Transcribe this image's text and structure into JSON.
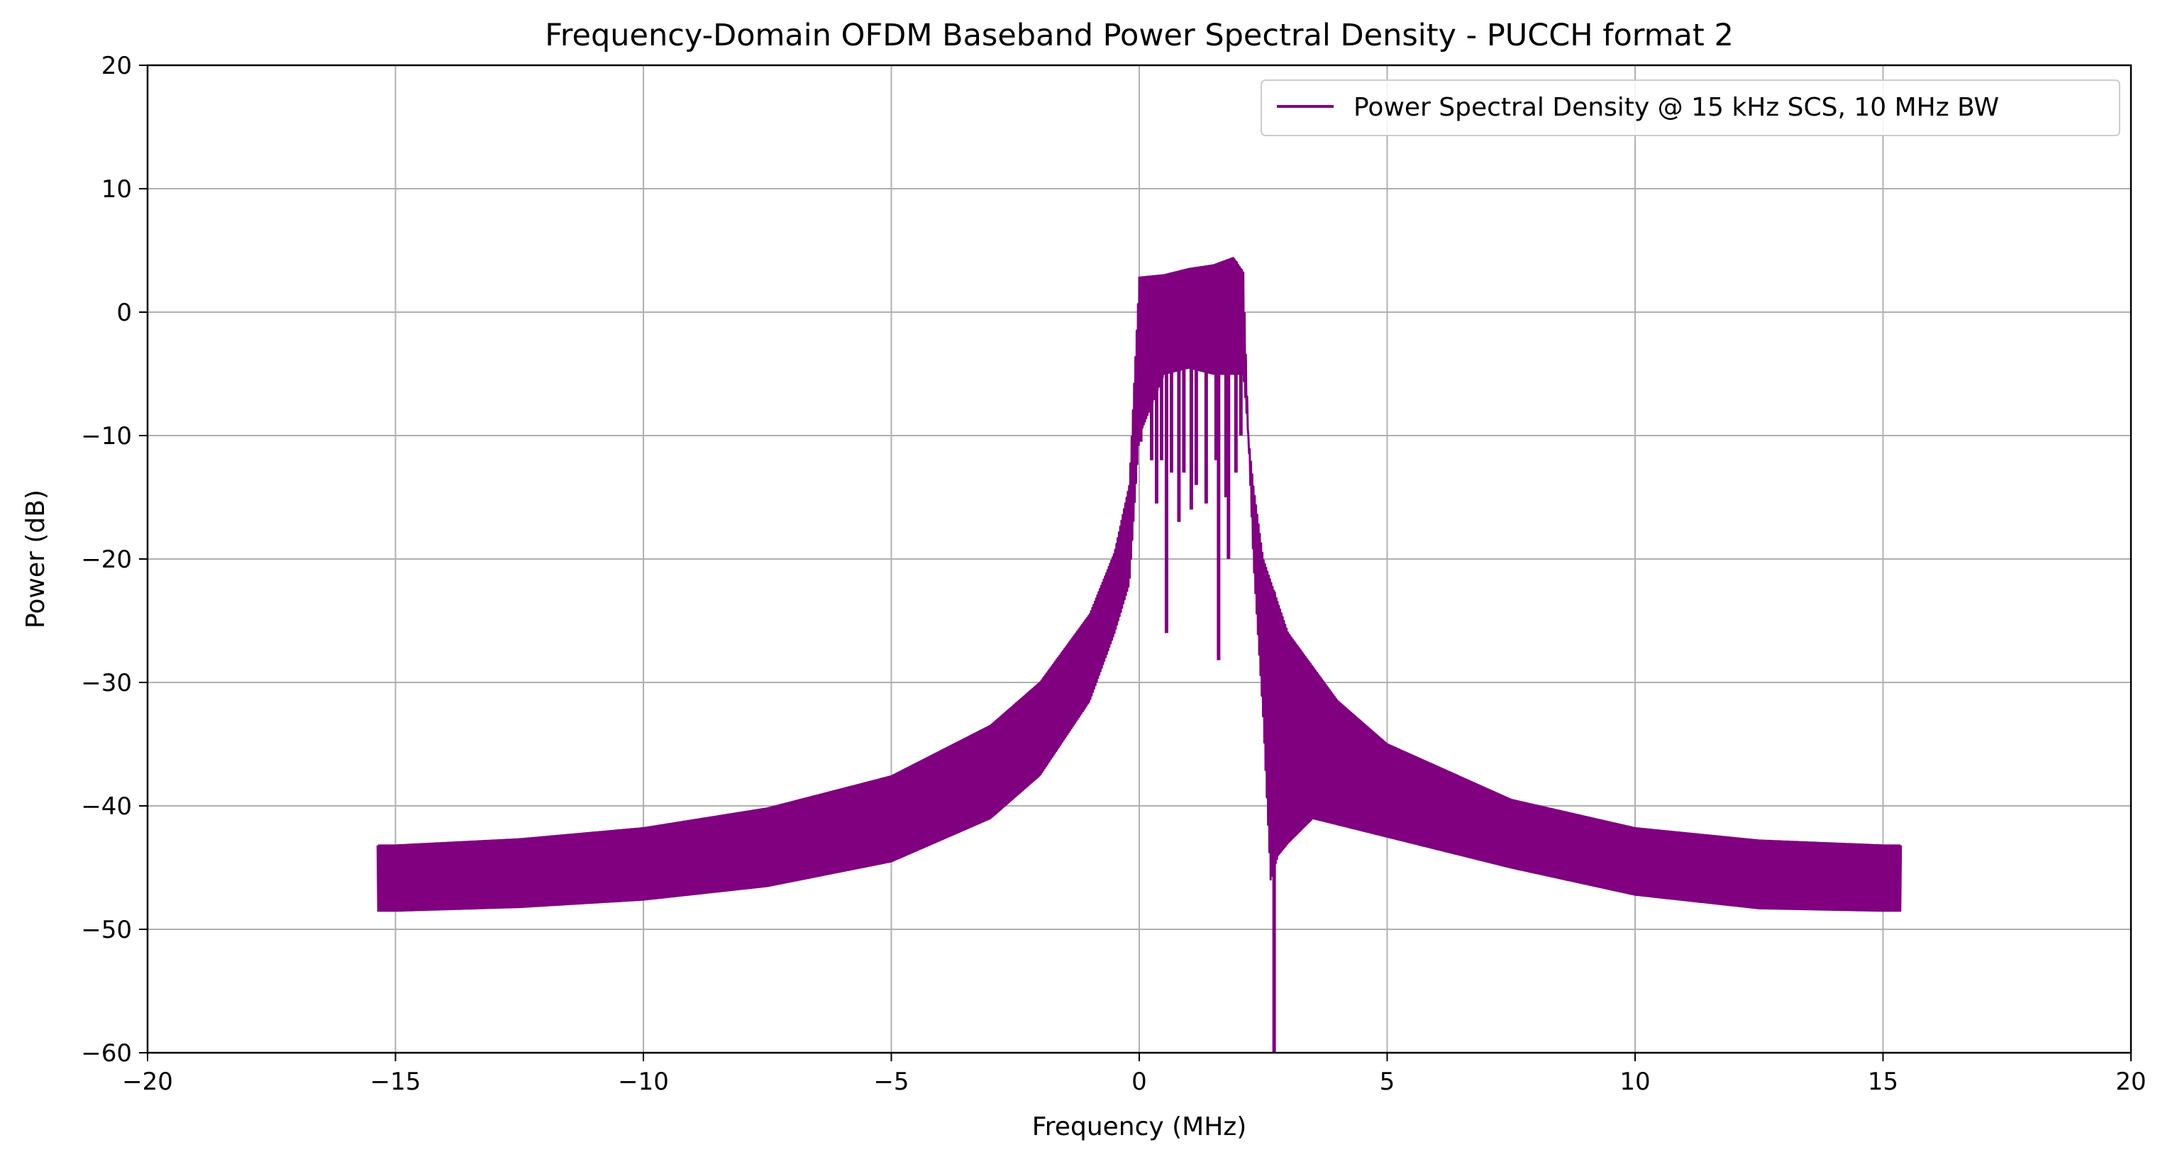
{
  "chart_data": {
    "type": "line",
    "title": "Frequency-Domain OFDM Baseband Power Spectral Density - PUCCH format 2",
    "xlabel": "Frequency (MHz)",
    "ylabel": "Power (dB)",
    "xlim": [
      -20,
      20
    ],
    "ylim": [
      -60,
      20
    ],
    "xticks": [
      -20,
      -15,
      -10,
      -5,
      0,
      5,
      10,
      15,
      20
    ],
    "xtick_labels": [
      "−20",
      "−15",
      "−10",
      "−5",
      "0",
      "5",
      "10",
      "15",
      "20"
    ],
    "yticks": [
      -60,
      -50,
      -40,
      -30,
      -20,
      -10,
      0,
      10,
      20
    ],
    "ytick_labels": [
      "−60",
      "−50",
      "−40",
      "−30",
      "−20",
      "−10",
      "0",
      "10",
      "20"
    ],
    "grid": true,
    "legend_position": "upper right",
    "series": [
      {
        "name": "Power Spectral Density @ 15 kHz SCS, 10 MHz BW",
        "color": "#800080",
        "x_range": [
          -15.36,
          15.36
        ],
        "band": [
          2.08,
          4.4
        ],
        "envelope_upper": [
          [
            -15.36,
            -43.2
          ],
          [
            -15,
            -43.2
          ],
          [
            -12.5,
            -42.7
          ],
          [
            -10,
            -41.8
          ],
          [
            -7.5,
            -40.2
          ],
          [
            -5,
            -37.6
          ],
          [
            -3,
            -33.5
          ],
          [
            -2,
            -30.0
          ],
          [
            -1,
            -24.5
          ],
          [
            -0.5,
            -19.5
          ],
          [
            -0.2,
            -14.0
          ],
          [
            0,
            2.8
          ],
          [
            0.5,
            3.0
          ],
          [
            1.0,
            3.5
          ],
          [
            1.5,
            3.8
          ],
          [
            1.9,
            4.4
          ],
          [
            2.1,
            3.2
          ],
          [
            2.2,
            -10.0
          ],
          [
            2.3,
            -14.0
          ],
          [
            2.5,
            -20.0
          ],
          [
            3.0,
            -26.0
          ],
          [
            4.0,
            -31.5
          ],
          [
            5.0,
            -35.0
          ],
          [
            7.5,
            -39.5
          ],
          [
            10.0,
            -41.8
          ],
          [
            12.5,
            -42.8
          ],
          [
            15.0,
            -43.2
          ],
          [
            15.36,
            -43.2
          ]
        ],
        "envelope_lower": [
          [
            -15.36,
            -48.5
          ],
          [
            -15,
            -48.5
          ],
          [
            -12.5,
            -48.2
          ],
          [
            -10,
            -47.6
          ],
          [
            -7.5,
            -46.5
          ],
          [
            -5,
            -44.5
          ],
          [
            -3,
            -41.0
          ],
          [
            -2,
            -37.5
          ],
          [
            -1,
            -31.5
          ],
          [
            -0.5,
            -26.0
          ],
          [
            -0.2,
            -22.0
          ],
          [
            0,
            -10.0
          ],
          [
            0.5,
            -5.0
          ],
          [
            1.0,
            -4.5
          ],
          [
            1.5,
            -5.0
          ],
          [
            1.9,
            -5.0
          ],
          [
            2.1,
            -5.0
          ],
          [
            2.2,
            -10.0
          ],
          [
            2.3,
            -20.0
          ],
          [
            2.5,
            -33.0
          ],
          [
            2.65,
            -46.0
          ],
          [
            2.8,
            -44.0
          ],
          [
            3.0,
            -43.0
          ],
          [
            3.5,
            -41.0
          ],
          [
            4.0,
            -41.5
          ],
          [
            5.0,
            -42.5
          ],
          [
            7.5,
            -45.0
          ],
          [
            10.0,
            -47.2
          ],
          [
            12.5,
            -48.3
          ],
          [
            15.0,
            -48.5
          ],
          [
            15.36,
            -48.5
          ]
        ],
        "notches": [
          [
            0.03,
            -10.5
          ],
          [
            0.25,
            -12.0
          ],
          [
            0.35,
            -15.5
          ],
          [
            0.45,
            -12.0
          ],
          [
            0.55,
            -26.0
          ],
          [
            0.65,
            -13.0
          ],
          [
            0.8,
            -17.0
          ],
          [
            0.9,
            -13.0
          ],
          [
            1.05,
            -16.0
          ],
          [
            1.15,
            -14.0
          ],
          [
            1.35,
            -15.5
          ],
          [
            1.55,
            -12.0
          ],
          [
            1.6,
            -28.2
          ],
          [
            1.75,
            -15.0
          ],
          [
            1.8,
            -20.0
          ],
          [
            1.95,
            -13.0
          ],
          [
            2.05,
            -10.0
          ],
          [
            2.72,
            -60.0
          ]
        ]
      }
    ]
  }
}
